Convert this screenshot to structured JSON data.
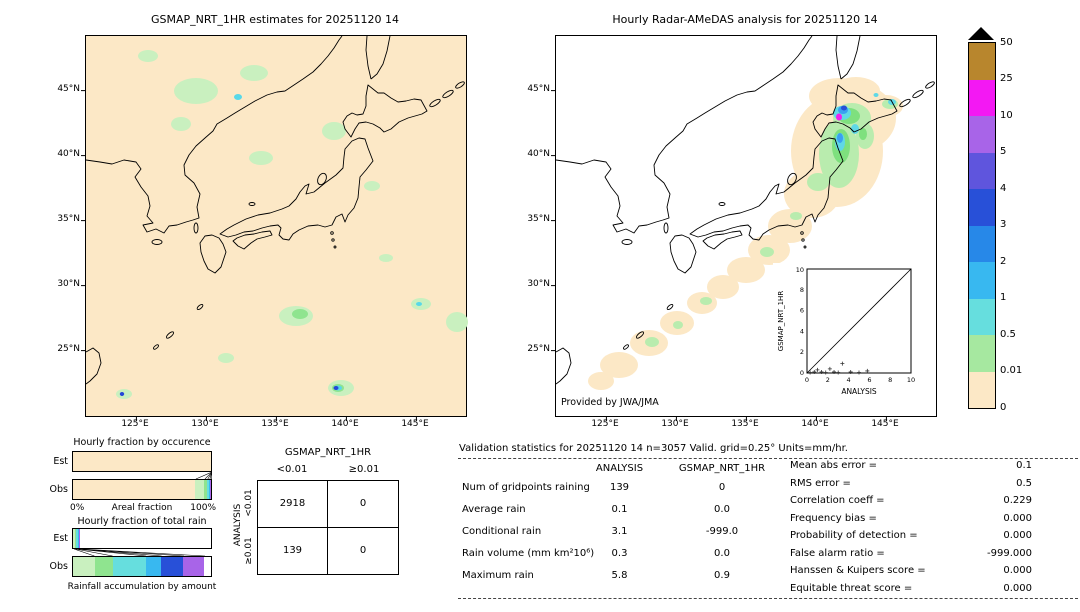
{
  "maps": {
    "left": {
      "title": "GSMAP_NRT_1HR estimates for 20251120 14"
    },
    "right": {
      "title": "Hourly Radar-AMeDAS analysis for 20251120 14",
      "credit": "Provided by JWA/JMA"
    },
    "lat_ticks": [
      "45°N",
      "40°N",
      "35°N",
      "30°N",
      "25°N"
    ],
    "lon_ticks": [
      "125°E",
      "130°E",
      "135°E",
      "140°E",
      "145°E"
    ]
  },
  "colorbar": {
    "labels": [
      "50",
      "25",
      "10",
      "5",
      "4",
      "3",
      "2",
      "1",
      "0.5",
      "0.01",
      "0"
    ],
    "colors": [
      "#b8862d",
      "#f318f3",
      "#a864e8",
      "#5f55dd",
      "#2850d8",
      "#2788e8",
      "#38b8f0",
      "#66dede",
      "#a6e8a0",
      "#fce8c6"
    ]
  },
  "inset": {
    "xlabel": "ANALYSIS",
    "ylabel": "GSMAP_NRT_1HR",
    "ticks": [
      "0",
      "2",
      "4",
      "6",
      "8",
      "10"
    ],
    "points": [
      [
        0.3,
        0.05
      ],
      [
        0.7,
        0.1
      ],
      [
        1.0,
        0.3
      ],
      [
        1.4,
        0.1
      ],
      [
        1.8,
        0.05
      ],
      [
        2.2,
        0.4
      ],
      [
        2.6,
        0.1
      ],
      [
        3.0,
        0.05
      ],
      [
        3.4,
        0.9
      ],
      [
        4.2,
        0.1
      ],
      [
        5.0,
        0.05
      ],
      [
        5.8,
        0.2
      ]
    ]
  },
  "occurrence": {
    "title": "Hourly fraction by occurence",
    "row_labels": [
      "Est",
      "Obs"
    ],
    "x_left": "0%",
    "x_center": "Areal fraction",
    "x_right": "100%",
    "est_segments": [
      {
        "color": "#fce8c6",
        "pct": 100
      },
      {
        "color": "#c9f0bf",
        "pct": 0
      },
      {
        "color": "#8fe48f",
        "pct": 0
      },
      {
        "color": "#66dede",
        "pct": 0
      },
      {
        "color": "#38b8f0",
        "pct": 0
      },
      {
        "color": "#a864e8",
        "pct": 0
      }
    ],
    "obs_segments": [
      {
        "color": "#fce8c6",
        "pct": 88.5
      },
      {
        "color": "#c9f0bf",
        "pct": 6.5
      },
      {
        "color": "#8fe48f",
        "pct": 2
      },
      {
        "color": "#66dede",
        "pct": 1.5
      },
      {
        "color": "#38b8f0",
        "pct": 1
      },
      {
        "color": "#a864e8",
        "pct": 0.5
      }
    ]
  },
  "totalrain": {
    "title": "Hourly fraction of total rain",
    "row_labels": [
      "Est",
      "Obs"
    ],
    "bottom_label": "Rainfall accumulation by amount",
    "est_segments": [
      {
        "color": "#c9f0bf",
        "pct": 1.5
      },
      {
        "color": "#8fe48f",
        "pct": 1
      },
      {
        "color": "#66dede",
        "pct": 1
      },
      {
        "color": "#38b8f0",
        "pct": 0.6
      },
      {
        "color": "#2850d8",
        "pct": 0.5
      },
      {
        "color": "#a864e8",
        "pct": 0.4
      },
      {
        "color": "#ffffff",
        "pct": 95
      }
    ],
    "obs_segments": [
      {
        "color": "#c9f0bf",
        "pct": 16
      },
      {
        "color": "#8fe48f",
        "pct": 13
      },
      {
        "color": "#66dede",
        "pct": 24
      },
      {
        "color": "#38b8f0",
        "pct": 11
      },
      {
        "color": "#2850d8",
        "pct": 16
      },
      {
        "color": "#a864e8",
        "pct": 15
      },
      {
        "color": "#ffffff",
        "pct": 5
      }
    ]
  },
  "contingency": {
    "title": "GSMAP_NRT_1HR",
    "col_headers": [
      "<0.01",
      "≥0.01"
    ],
    "row_headers": [
      "<0.01",
      "≥0.01"
    ],
    "side_label": "ANALYSIS",
    "cells": [
      [
        "2918",
        "0"
      ],
      [
        "139",
        "0"
      ]
    ]
  },
  "stats": {
    "title": "Validation statistics for 20251120 14  n=3057 Valid. grid=0.25° Units=mm/hr.",
    "columns": [
      "ANALYSIS",
      "GSMAP_NRT_1HR"
    ],
    "rows": [
      {
        "label": "Num of gridpoints raining",
        "analysis": "139",
        "gsmap": "0"
      },
      {
        "label": "Average rain",
        "analysis": "0.1",
        "gsmap": "0.0"
      },
      {
        "label": "Conditional rain",
        "analysis": "3.1",
        "gsmap": "-999.0"
      },
      {
        "label": "Rain volume (mm km²10⁶)",
        "analysis": "0.3",
        "gsmap": "0.0"
      },
      {
        "label": "Maximum rain",
        "analysis": "5.8",
        "gsmap": "0.9"
      }
    ],
    "scores": [
      {
        "label": "Mean abs error =",
        "value": "0.1"
      },
      {
        "label": "RMS error =",
        "value": "0.5"
      },
      {
        "label": "Correlation coeff =",
        "value": "0.229"
      },
      {
        "label": "Frequency bias =",
        "value": "0.000"
      },
      {
        "label": "Probability of detection =",
        "value": "0.000"
      },
      {
        "label": "False alarm ratio =",
        "value": "-999.000"
      },
      {
        "label": "Hanssen & Kuipers score =",
        "value": "0.000"
      },
      {
        "label": "Equitable threat score =",
        "value": "0.000"
      }
    ]
  },
  "chart_data": [
    {
      "type": "table",
      "title": "Contingency table, ANALYSIS vs GSMAP_NRT_1HR, threshold 0.01 mm/hr",
      "columns": [
        "GSMAP_NRT_1HR <0.01",
        "GSMAP_NRT_1HR ≥0.01"
      ],
      "rows": [
        {
          "label": "ANALYSIS <0.01",
          "values": [
            2918,
            0
          ]
        },
        {
          "label": "ANALYSIS ≥0.01",
          "values": [
            139,
            0
          ]
        }
      ]
    },
    {
      "type": "table",
      "title": "Validation statistics for 20251120 14, n=3057, grid=0.25°, units=mm/hr",
      "columns": [
        "ANALYSIS",
        "GSMAP_NRT_1HR"
      ],
      "rows": [
        {
          "label": "Num of gridpoints raining",
          "values": [
            139,
            0
          ]
        },
        {
          "label": "Average rain",
          "values": [
            0.1,
            0.0
          ]
        },
        {
          "label": "Conditional rain",
          "values": [
            3.1,
            -999.0
          ]
        },
        {
          "label": "Rain volume (mm km²10⁶)",
          "values": [
            0.3,
            0.0
          ]
        },
        {
          "label": "Maximum rain",
          "values": [
            5.8,
            0.9
          ]
        }
      ],
      "scores": {
        "Mean abs error": 0.1,
        "RMS error": 0.5,
        "Correlation coeff": 0.229,
        "Frequency bias": 0.0,
        "Probability of detection": 0.0,
        "False alarm ratio": -999.0,
        "Hanssen & Kuipers score": 0.0,
        "Equitable threat score": 0.0
      }
    },
    {
      "type": "scatter",
      "title": "GSMAP_NRT_1HR vs ANALYSIS inset",
      "xlabel": "ANALYSIS",
      "ylabel": "GSMAP_NRT_1HR",
      "xlim": [
        0,
        10
      ],
      "ylim": [
        0,
        10
      ],
      "points": [
        [
          0.3,
          0.05
        ],
        [
          0.7,
          0.1
        ],
        [
          1.0,
          0.3
        ],
        [
          1.4,
          0.1
        ],
        [
          1.8,
          0.05
        ],
        [
          2.2,
          0.4
        ],
        [
          2.6,
          0.1
        ],
        [
          3.0,
          0.05
        ],
        [
          3.4,
          0.9
        ],
        [
          4.2,
          0.1
        ],
        [
          5.0,
          0.05
        ],
        [
          5.8,
          0.2
        ]
      ]
    }
  ]
}
